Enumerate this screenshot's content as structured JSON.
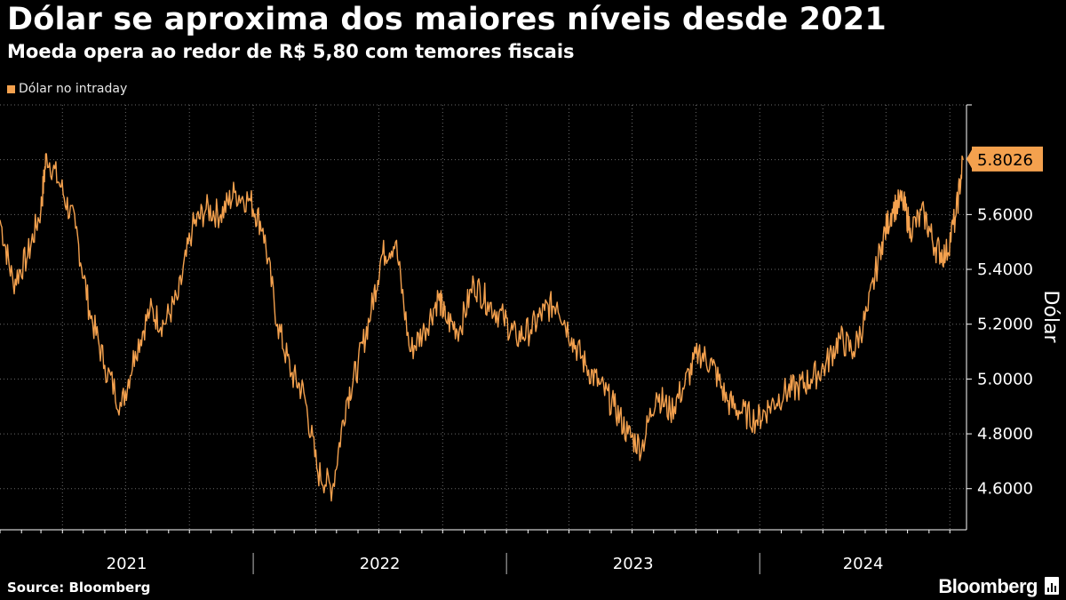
{
  "title": "Dólar se aproxima dos maiores níveis desde 2021",
  "subtitle": "Moeda opera ao redor de R$ 5,80 com temores fiscais",
  "source": "Source: Bloomberg",
  "brand": "Bloomberg",
  "colors": {
    "line": "#f4a14e",
    "background": "#000000",
    "grid": "#6a6a6a"
  },
  "chart_data": {
    "type": "line",
    "legend": [
      "Dólar no intraday"
    ],
    "legend_position": "top-left",
    "ylabel": "Dólar",
    "ylim": [
      4.45,
      6.0
    ],
    "yticks": [
      4.6,
      4.8,
      5.0,
      5.2,
      5.4,
      5.6
    ],
    "ytick_labels": [
      "4.6000",
      "4.8000",
      "5.0000",
      "5.2000",
      "5.4000",
      "5.6000"
    ],
    "xlim": [
      "2021-01-01",
      "2024-10-25"
    ],
    "x_categories": [
      "2021",
      "2022",
      "2023",
      "2024"
    ],
    "grid": true,
    "last_value": 5.8026,
    "last_value_label": "5.8026",
    "series": [
      {
        "name": "Dólar no intraday",
        "x": [
          "2021-01-01",
          "2021-01-20",
          "2021-02-10",
          "2021-03-01",
          "2021-03-09",
          "2021-03-30",
          "2021-04-20",
          "2021-05-10",
          "2021-06-01",
          "2021-06-25",
          "2021-07-15",
          "2021-08-05",
          "2021-08-25",
          "2021-09-15",
          "2021-10-05",
          "2021-10-25",
          "2021-11-15",
          "2021-12-05",
          "2021-12-28",
          "2022-01-15",
          "2022-02-05",
          "2022-02-25",
          "2022-03-15",
          "2022-04-04",
          "2022-04-25",
          "2022-05-15",
          "2022-06-01",
          "2022-06-20",
          "2022-07-05",
          "2022-07-25",
          "2022-08-15",
          "2022-09-05",
          "2022-09-25",
          "2022-10-05",
          "2022-10-25",
          "2022-11-15",
          "2022-12-05",
          "2022-12-28",
          "2023-01-15",
          "2023-02-05",
          "2023-02-25",
          "2023-03-15",
          "2023-04-05",
          "2023-04-25",
          "2023-05-15",
          "2023-06-05",
          "2023-06-25",
          "2023-07-15",
          "2023-08-05",
          "2023-08-25",
          "2023-09-15",
          "2023-10-05",
          "2023-10-25",
          "2023-11-15",
          "2023-12-05",
          "2023-12-28",
          "2024-01-15",
          "2024-02-05",
          "2024-02-25",
          "2024-03-15",
          "2024-04-05",
          "2024-04-25",
          "2024-05-15",
          "2024-06-05",
          "2024-06-25",
          "2024-07-10",
          "2024-07-25",
          "2024-08-05",
          "2024-08-25",
          "2024-09-10",
          "2024-09-25",
          "2024-10-10",
          "2024-10-20"
        ],
        "values": [
          5.58,
          5.35,
          5.45,
          5.62,
          5.82,
          5.7,
          5.55,
          5.25,
          5.05,
          4.9,
          5.1,
          5.25,
          5.2,
          5.3,
          5.55,
          5.62,
          5.6,
          5.68,
          5.65,
          5.55,
          5.2,
          5.02,
          4.95,
          4.66,
          4.6,
          4.92,
          5.05,
          5.25,
          5.45,
          5.5,
          5.1,
          5.18,
          5.3,
          5.22,
          5.18,
          5.35,
          5.28,
          5.22,
          5.15,
          5.18,
          5.25,
          5.28,
          5.15,
          5.05,
          4.98,
          4.9,
          4.8,
          4.75,
          4.95,
          4.88,
          4.98,
          5.1,
          5.05,
          4.92,
          4.88,
          4.85,
          4.9,
          4.95,
          4.97,
          5.0,
          5.05,
          5.15,
          5.1,
          5.25,
          5.5,
          5.62,
          5.65,
          5.55,
          5.6,
          5.48,
          5.45,
          5.6,
          5.8
        ]
      }
    ]
  }
}
